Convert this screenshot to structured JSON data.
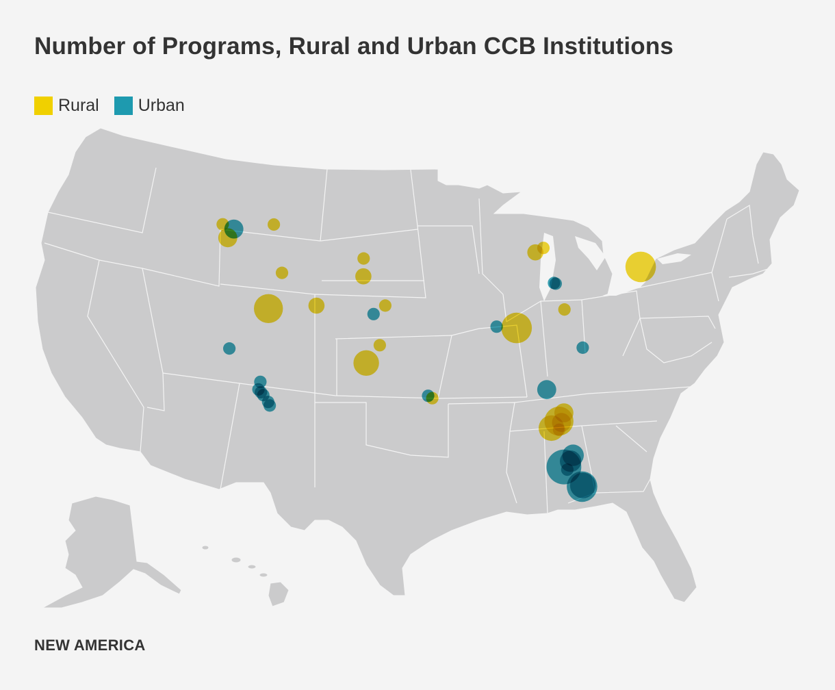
{
  "title": "Number of Programs, Rural and Urban CCB Institutions",
  "legend": [
    {
      "label": "Rural",
      "color": "#f0d000"
    },
    {
      "label": "Urban",
      "color": "#1e9aaf"
    }
  ],
  "brand": "NEW AMERICA",
  "colors": {
    "background": "#f4f4f4",
    "land": "#cbcbcc",
    "rural": "#f0d000",
    "urban": "#1e9aaf"
  },
  "chart_data": {
    "type": "bubble-map",
    "region": "United States",
    "series": [
      {
        "name": "Rural",
        "points": [
          {
            "lon": -123.7,
            "lat": 48.1,
            "programs": 1
          },
          {
            "lon": -123.0,
            "lat": 46.95,
            "programs": 3
          },
          {
            "lon": -117.4,
            "lat": 47.6,
            "programs": 1
          },
          {
            "lon": -116.2,
            "lat": 43.6,
            "programs": 1
          },
          {
            "lon": -117.7,
            "lat": 40.8,
            "programs": 8
          },
          {
            "lon": -111.9,
            "lat": 40.7,
            "programs": 2
          },
          {
            "lon": -106.3,
            "lat": 44.3,
            "programs": 1
          },
          {
            "lon": -106.3,
            "lat": 42.85,
            "programs": 2
          },
          {
            "lon": -103.6,
            "lat": 40.4,
            "programs": 1
          },
          {
            "lon": -104.2,
            "lat": 37.2,
            "programs": 1
          },
          {
            "lon": -105.8,
            "lat": 35.8,
            "programs": 6
          },
          {
            "lon": -97.9,
            "lat": 32.8,
            "programs": 1
          },
          {
            "lon": -85.4,
            "lat": 44.8,
            "programs": 2
          },
          {
            "lon": -84.4,
            "lat": 45.2,
            "programs": 1
          },
          {
            "lon": -82.0,
            "lat": 40.3,
            "programs": 1
          },
          {
            "lon": -87.8,
            "lat": 38.6,
            "programs": 9
          },
          {
            "lon": -72.6,
            "lat": 44.3,
            "programs": 9
          },
          {
            "lon": -82.3,
            "lat": 31.9,
            "programs": 3
          },
          {
            "lon": -82.9,
            "lat": 31.2,
            "programs": 8
          },
          {
            "lon": -83.8,
            "lat": 30.6,
            "programs": 6
          },
          {
            "lon": -82.6,
            "lat": 31.1,
            "programs": 3
          },
          {
            "lon": -82.9,
            "lat": 30.5,
            "programs": 1
          }
        ]
      },
      {
        "name": "Urban",
        "points": [
          {
            "lon": -122.3,
            "lat": 47.6,
            "programs": 3
          },
          {
            "lon": -122.25,
            "lat": 37.9,
            "programs": 1
          },
          {
            "lon": -118.4,
            "lat": 34.9,
            "programs": 1
          },
          {
            "lon": -118.6,
            "lat": 34.3,
            "programs": 1
          },
          {
            "lon": -118.3,
            "lat": 34.05,
            "programs": 1
          },
          {
            "lon": -118.0,
            "lat": 33.8,
            "programs": 1
          },
          {
            "lon": -117.4,
            "lat": 33.2,
            "programs": 1
          },
          {
            "lon": -117.2,
            "lat": 32.9,
            "programs": 1
          },
          {
            "lon": -105.0,
            "lat": 39.75,
            "programs": 1
          },
          {
            "lon": -90.2,
            "lat": 38.65,
            "programs": 1
          },
          {
            "lon": -83.2,
            "lat": 42.4,
            "programs": 1
          },
          {
            "lon": -83.0,
            "lat": 42.35,
            "programs": 1
          },
          {
            "lon": -79.9,
            "lat": 37.3,
            "programs": 1
          },
          {
            "lon": -98.4,
            "lat": 33.0,
            "programs": 1
          },
          {
            "lon": -84.3,
            "lat": 33.7,
            "programs": 3
          },
          {
            "lon": -81.3,
            "lat": 28.5,
            "programs": 4
          },
          {
            "lon": -81.6,
            "lat": 28.0,
            "programs": 4
          },
          {
            "lon": -82.4,
            "lat": 27.5,
            "programs": 12
          },
          {
            "lon": -82.0,
            "lat": 27.3,
            "programs": 1
          },
          {
            "lon": -80.3,
            "lat": 26.0,
            "programs": 9
          },
          {
            "lon": -80.2,
            "lat": 26.1,
            "programs": 6
          }
        ]
      }
    ]
  }
}
